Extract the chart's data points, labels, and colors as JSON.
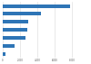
{
  "values": [
    7806,
    4408,
    2940,
    2870,
    2670,
    1400,
    350
  ],
  "bar_color": "#2e75b6",
  "background_color": "#ffffff",
  "grid_color": "#d9d9d9",
  "xlim": [
    0,
    10000
  ],
  "bar_height": 0.45,
  "figsize": [
    1.0,
    0.71
  ],
  "dpi": 100,
  "xticks": [
    0,
    2000,
    4000,
    6000,
    8000
  ],
  "xtick_labels": [
    "0",
    "2,000",
    "4,000",
    "6,000",
    "8,000"
  ]
}
